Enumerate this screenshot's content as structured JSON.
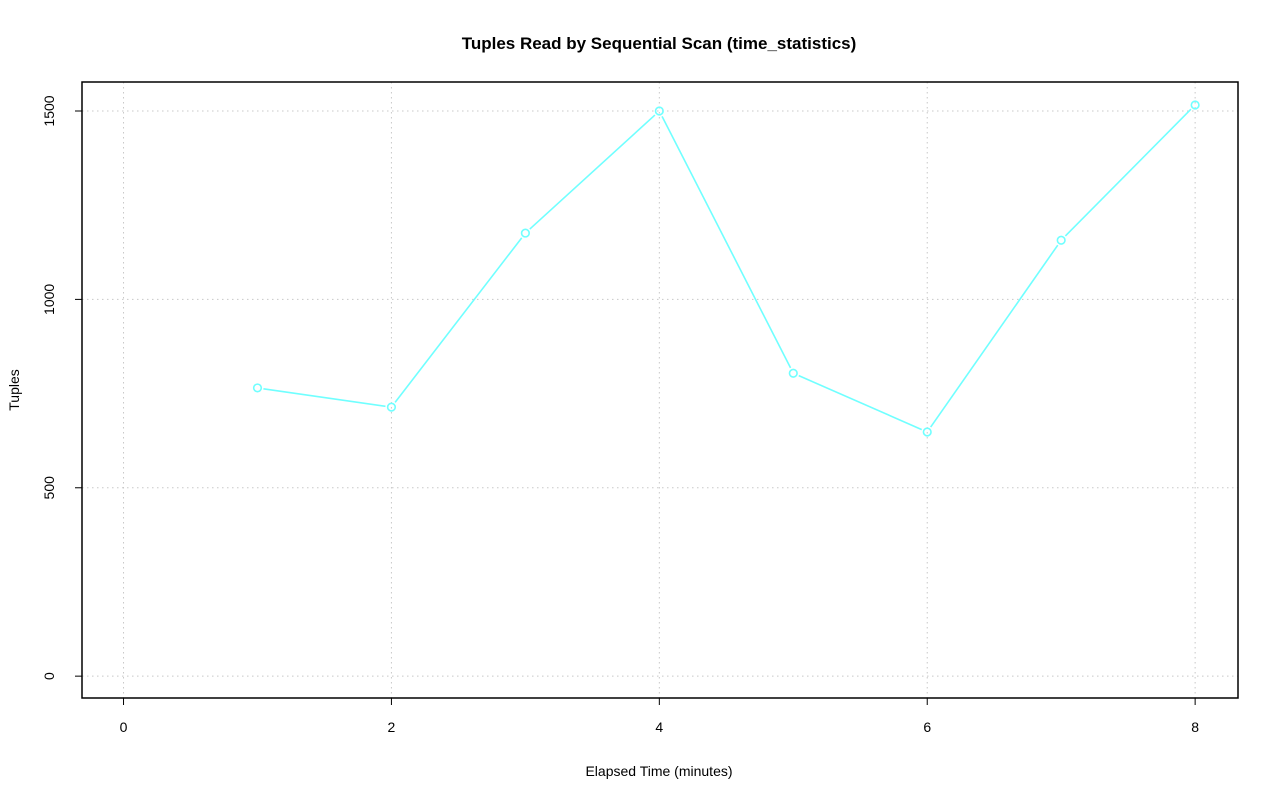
{
  "chart_data": {
    "type": "line",
    "title": "Tuples Read by Sequential Scan (time_statistics)",
    "xlabel": "Elapsed Time (minutes)",
    "ylabel": "Tuples",
    "x": [
      1,
      2,
      3,
      4,
      5,
      6,
      7,
      8
    ],
    "series": [
      {
        "values": [
          765,
          714,
          1176,
          1500,
          804,
          648,
          1157,
          1516
        ],
        "color": "#70ffff",
        "markers": "open-circle"
      }
    ],
    "xlim": [
      -0.31,
      8.32
    ],
    "ylim": [
      -58,
      1577
    ],
    "xticks": [
      0,
      2,
      4,
      6,
      8
    ],
    "yticks": [
      0,
      500,
      1000,
      1500
    ],
    "grid": true,
    "grid_style": "dotted"
  }
}
